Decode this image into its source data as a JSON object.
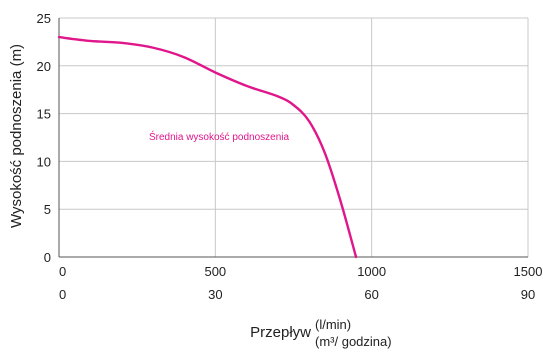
{
  "chart_data": {
    "type": "line",
    "ylabel": "Wysokość podnoszenia (m)",
    "xlabel": "Przepływ",
    "xlabel_units": [
      "(l/min)",
      "(m³/ godzina)"
    ],
    "xlim": [
      0,
      1500
    ],
    "ylim": [
      0,
      25
    ],
    "grid": true,
    "x_ticks_primary": [
      "0",
      "500",
      "1000",
      "1500"
    ],
    "x_ticks_secondary": [
      "0",
      "30",
      "60",
      "90"
    ],
    "y_ticks": [
      "0",
      "5",
      "10",
      "15",
      "20",
      "25"
    ],
    "series": [
      {
        "name": "Średnia wysokość podnoszenia",
        "color": "#e0168b",
        "x": [
          0,
          100,
          200,
          300,
          400,
          500,
          600,
          700,
          750,
          800,
          850,
          900,
          950
        ],
        "y": [
          23.0,
          22.6,
          22.4,
          21.9,
          20.9,
          19.3,
          17.9,
          16.8,
          15.9,
          14.2,
          10.9,
          5.9,
          0
        ]
      }
    ]
  }
}
